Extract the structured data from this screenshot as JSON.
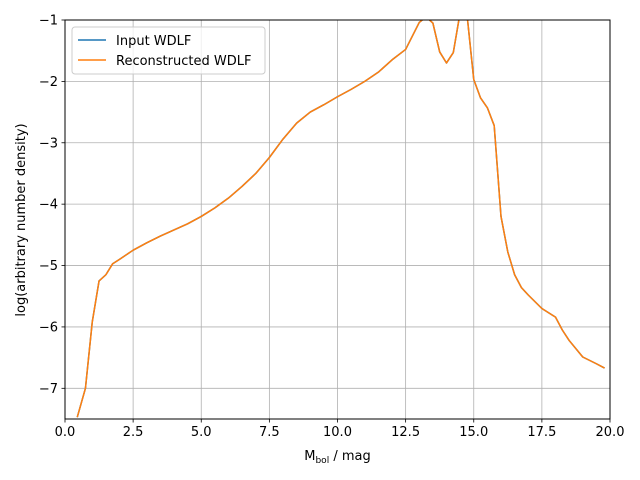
{
  "chart_data": {
    "type": "line",
    "xlabel_main": "M",
    "xlabel_sub": "bol",
    "xlabel_rest": " / mag",
    "ylabel": "log(arbitrary number density)",
    "xlim": [
      0.0,
      20.0
    ],
    "ylim": [
      -7.5,
      -1.0
    ],
    "xticks": [
      0.0,
      2.5,
      5.0,
      7.5,
      10.0,
      12.5,
      15.0,
      17.5,
      20.0
    ],
    "xtick_labels": [
      "0.0",
      "2.5",
      "5.0",
      "7.5",
      "10.0",
      "12.5",
      "15.0",
      "17.5",
      "20.0"
    ],
    "yticks": [
      -7,
      -6,
      -5,
      -4,
      -3,
      -2,
      -1
    ],
    "ytick_labels": [
      "−7",
      "−6",
      "−5",
      "−4",
      "−3",
      "−2",
      "−1"
    ],
    "grid": true,
    "legend_position": "top-left",
    "series": [
      {
        "name": "Input WDLF",
        "color": "#1f77b4",
        "x": [
          0.45,
          0.75,
          1.0,
          1.25,
          1.5,
          1.75,
          2.0,
          2.5,
          3.0,
          3.5,
          4.0,
          4.5,
          5.0,
          5.5,
          6.0,
          6.5,
          7.0,
          7.5,
          8.0,
          8.5,
          9.0,
          9.5,
          10.0,
          10.5,
          11.0,
          11.5,
          12.0,
          12.5,
          13.0,
          13.25,
          13.5,
          13.75,
          14.0,
          14.25,
          14.5,
          14.75,
          15.0,
          15.25,
          15.5,
          15.75,
          16.0,
          16.25,
          16.5,
          16.75,
          17.0,
          17.5,
          18.0,
          18.25,
          18.5,
          19.0,
          19.5,
          19.8
        ],
        "y": [
          -7.47,
          -7.0,
          -5.92,
          -5.25,
          -5.15,
          -4.97,
          -4.9,
          -4.75,
          -4.63,
          -4.52,
          -4.42,
          -4.32,
          -4.2,
          -4.06,
          -3.9,
          -3.71,
          -3.5,
          -3.24,
          -2.94,
          -2.68,
          -2.5,
          -2.38,
          -2.25,
          -2.13,
          -2.0,
          -1.85,
          -1.65,
          -1.48,
          -1.04,
          -0.95,
          -1.05,
          -1.52,
          -1.7,
          -1.53,
          -0.88,
          -0.9,
          -1.97,
          -2.27,
          -2.43,
          -2.72,
          -4.2,
          -4.78,
          -5.15,
          -5.36,
          -5.48,
          -5.7,
          -5.84,
          -6.05,
          -6.22,
          -6.49,
          -6.6,
          -6.67
        ]
      },
      {
        "name": "Reconstructed WDLF",
        "color": "#ff7f0e",
        "x": [
          0.45,
          0.75,
          1.0,
          1.25,
          1.5,
          1.75,
          2.0,
          2.5,
          3.0,
          3.5,
          4.0,
          4.5,
          5.0,
          5.5,
          6.0,
          6.5,
          7.0,
          7.5,
          8.0,
          8.5,
          9.0,
          9.5,
          10.0,
          10.5,
          11.0,
          11.5,
          12.0,
          12.5,
          13.0,
          13.25,
          13.5,
          13.75,
          14.0,
          14.25,
          14.5,
          14.75,
          15.0,
          15.25,
          15.5,
          15.75,
          16.0,
          16.25,
          16.5,
          16.75,
          17.0,
          17.5,
          18.0,
          18.25,
          18.5,
          19.0,
          19.5,
          19.8
        ],
        "y": [
          -7.47,
          -7.0,
          -5.92,
          -5.25,
          -5.15,
          -4.97,
          -4.9,
          -4.75,
          -4.63,
          -4.52,
          -4.42,
          -4.32,
          -4.2,
          -4.06,
          -3.9,
          -3.71,
          -3.5,
          -3.24,
          -2.94,
          -2.68,
          -2.5,
          -2.38,
          -2.25,
          -2.13,
          -2.0,
          -1.85,
          -1.65,
          -1.48,
          -1.04,
          -0.95,
          -1.05,
          -1.52,
          -1.7,
          -1.53,
          -0.88,
          -0.9,
          -1.97,
          -2.27,
          -2.43,
          -2.72,
          -4.2,
          -4.78,
          -5.15,
          -5.36,
          -5.48,
          -5.7,
          -5.84,
          -6.05,
          -6.22,
          -6.49,
          -6.6,
          -6.67
        ]
      }
    ]
  }
}
